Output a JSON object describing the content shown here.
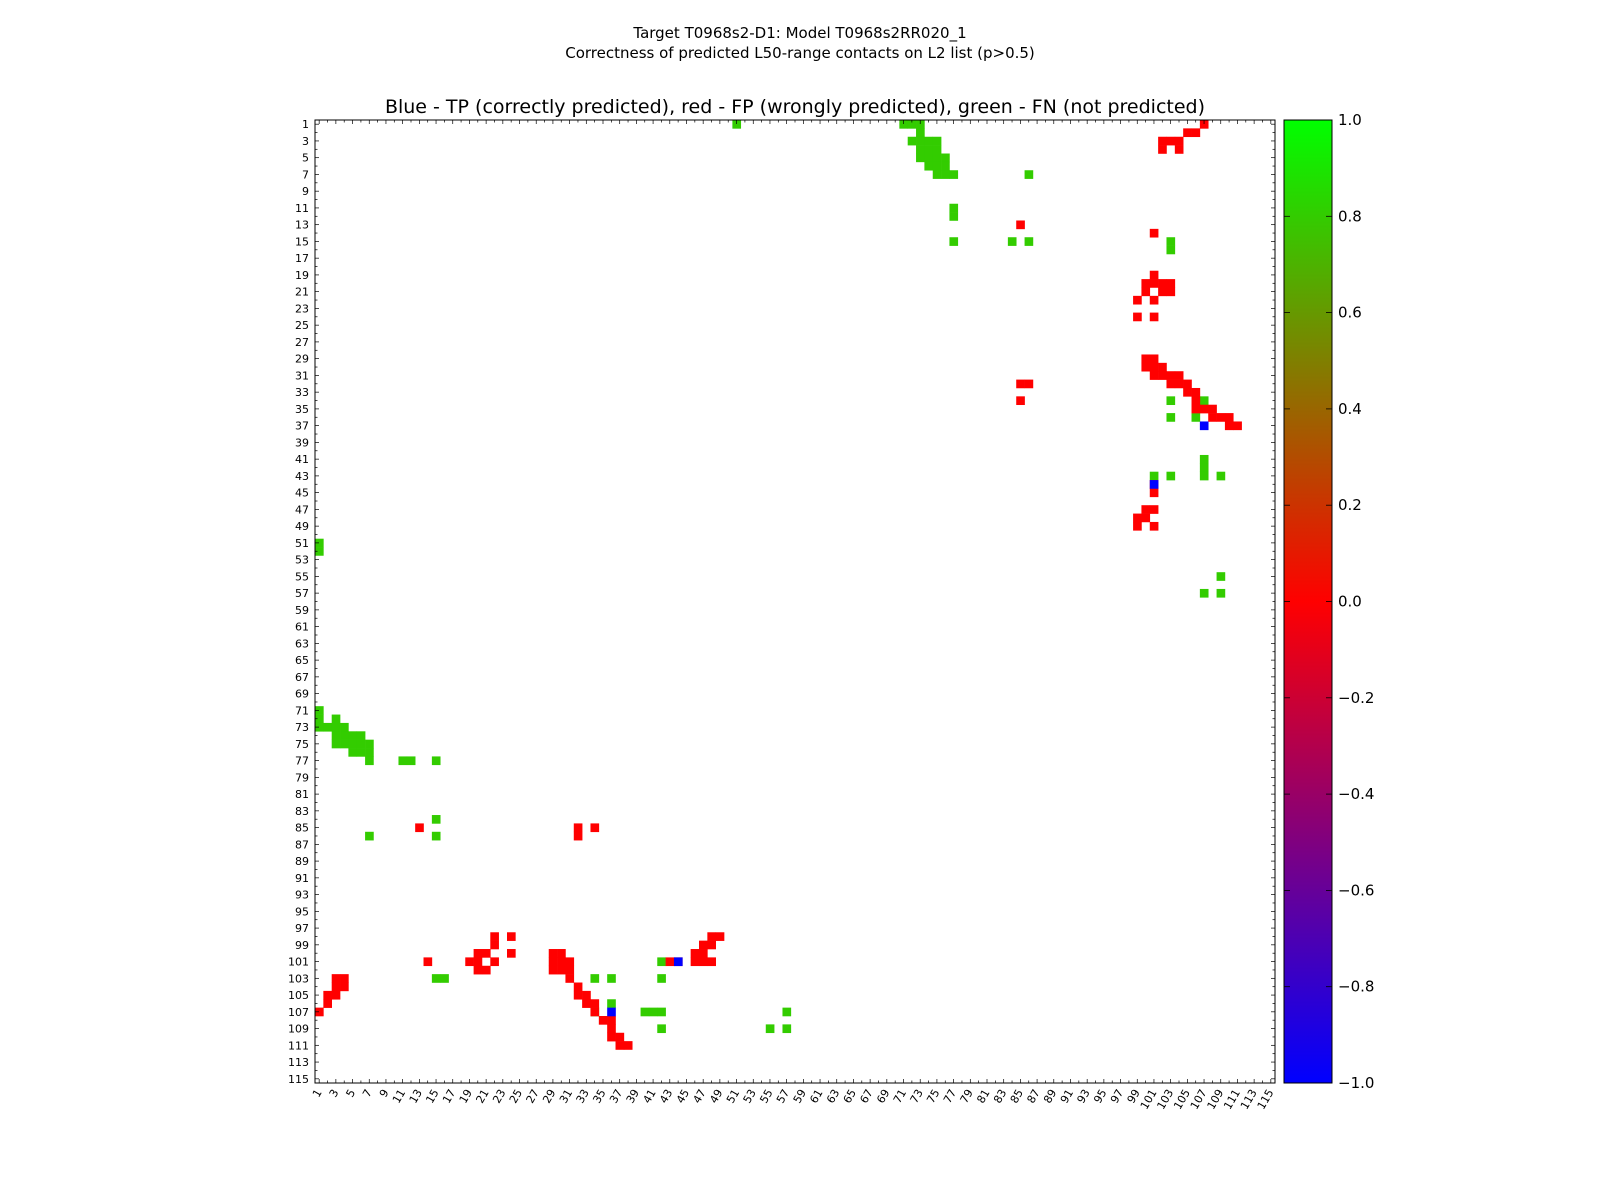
{
  "chart_data": {
    "type": "heatmap",
    "suptitle_line1": "Target T0968s2-D1: Model T0968s2RR020_1",
    "suptitle_line2": "Correctness of predicted L50-range contacts on L2 list (p>0.5)",
    "title": "Blue - TP (correctly predicted), red - FP (wrongly predicted), green - FN (not predicted)",
    "matrix_size": 115,
    "x_tick_labels": [
      "1",
      "3",
      "5",
      "7",
      "9",
      "11",
      "13",
      "15",
      "17",
      "19",
      "21",
      "23",
      "25",
      "27",
      "29",
      "31",
      "33",
      "35",
      "37",
      "39",
      "41",
      "43",
      "45",
      "47",
      "49",
      "51",
      "53",
      "55",
      "57",
      "59",
      "61",
      "63",
      "65",
      "67",
      "69",
      "71",
      "73",
      "75",
      "77",
      "79",
      "81",
      "83",
      "85",
      "87",
      "89",
      "91",
      "93",
      "95",
      "97",
      "99",
      "101",
      "103",
      "105",
      "107",
      "109",
      "111",
      "113",
      "115"
    ],
    "y_tick_labels": [
      "1",
      "3",
      "5",
      "7",
      "9",
      "11",
      "13",
      "15",
      "17",
      "19",
      "21",
      "23",
      "25",
      "27",
      "29",
      "31",
      "33",
      "35",
      "37",
      "39",
      "41",
      "43",
      "45",
      "47",
      "49",
      "51",
      "53",
      "55",
      "57",
      "59",
      "61",
      "63",
      "65",
      "67",
      "69",
      "71",
      "73",
      "75",
      "77",
      "79",
      "81",
      "83",
      "85",
      "87",
      "89",
      "91",
      "93",
      "95",
      "97",
      "99",
      "101",
      "103",
      "105",
      "107",
      "109",
      "111",
      "113",
      "115"
    ],
    "colorbar": {
      "range": [
        -1.0,
        1.0
      ],
      "colors": [
        "#0000ff",
        "#ff0000",
        "#00ff00"
      ],
      "tick_labels": [
        "1.0",
        "0.8",
        "0.6",
        "0.4",
        "0.2",
        "0.0",
        "−0.2",
        "−0.4",
        "−0.6",
        "−0.8",
        "−1.0"
      ]
    },
    "category_colors": {
      "TP": "#0000ff",
      "FP": "#ff0000",
      "FN": "#33cc00"
    },
    "cells": {
      "FN": [
        [
          1,
          51
        ],
        [
          1,
          71
        ],
        [
          1,
          72
        ],
        [
          1,
          73
        ],
        [
          2,
          73
        ],
        [
          3,
          72
        ],
        [
          3,
          73
        ],
        [
          3,
          74
        ],
        [
          3,
          75
        ],
        [
          4,
          73
        ],
        [
          4,
          74
        ],
        [
          4,
          75
        ],
        [
          5,
          73
        ],
        [
          5,
          74
        ],
        [
          5,
          75
        ],
        [
          5,
          76
        ],
        [
          6,
          74
        ],
        [
          6,
          75
        ],
        [
          6,
          76
        ],
        [
          7,
          75
        ],
        [
          7,
          76
        ],
        [
          7,
          77
        ],
        [
          7,
          86
        ],
        [
          11,
          77
        ],
        [
          12,
          77
        ],
        [
          15,
          77
        ],
        [
          15,
          84
        ],
        [
          15,
          86
        ],
        [
          15,
          103
        ],
        [
          16,
          103
        ],
        [
          34,
          103
        ],
        [
          34,
          107
        ],
        [
          36,
          103
        ],
        [
          36,
          106
        ],
        [
          41,
          107
        ],
        [
          42,
          107
        ],
        [
          43,
          101
        ],
        [
          43,
          103
        ],
        [
          43,
          107
        ],
        [
          43,
          109
        ],
        [
          55,
          109
        ],
        [
          57,
          107
        ],
        [
          57,
          109
        ],
        [
          51,
          1
        ],
        [
          52,
          1
        ],
        [
          71,
          1
        ],
        [
          72,
          1
        ],
        [
          73,
          1
        ],
        [
          73,
          2
        ],
        [
          73,
          3
        ],
        [
          72,
          3
        ],
        [
          74,
          3
        ],
        [
          74,
          4
        ],
        [
          75,
          3
        ],
        [
          73,
          4
        ],
        [
          74,
          5
        ],
        [
          75,
          5
        ],
        [
          76,
          5
        ],
        [
          75,
          4
        ],
        [
          76,
          6
        ],
        [
          74,
          6
        ],
        [
          75,
          6
        ],
        [
          75,
          7
        ],
        [
          76,
          7
        ],
        [
          77,
          7
        ],
        [
          77,
          11
        ],
        [
          77,
          12
        ],
        [
          77,
          15
        ],
        [
          84,
          15
        ],
        [
          86,
          15
        ],
        [
          86,
          7
        ],
        [
          101,
          42
        ],
        [
          103,
          15
        ],
        [
          103,
          16
        ],
        [
          103,
          34
        ],
        [
          103,
          36
        ],
        [
          103,
          42
        ],
        [
          106,
          36
        ],
        [
          107,
          34
        ],
        [
          107,
          40
        ],
        [
          107,
          41
        ],
        [
          107,
          42
        ],
        [
          107,
          57
        ],
        [
          109,
          42
        ],
        [
          109,
          55
        ],
        [
          109,
          57
        ]
      ],
      "FP": [
        [
          1,
          107
        ],
        [
          2,
          105
        ],
        [
          2,
          106
        ],
        [
          3,
          102
        ],
        [
          3,
          103
        ],
        [
          3,
          104
        ],
        [
          4,
          102
        ],
        [
          4,
          104
        ],
        [
          13,
          85
        ],
        [
          14,
          101
        ],
        [
          19,
          101
        ],
        [
          20,
          100
        ],
        [
          20,
          101
        ],
        [
          20,
          102
        ],
        [
          20,
          103
        ],
        [
          21,
          100
        ],
        [
          21,
          102
        ],
        [
          21,
          103
        ],
        [
          22,
          99
        ],
        [
          22,
          101
        ],
        [
          24,
          99
        ],
        [
          24,
          101
        ],
        [
          29,
          100
        ],
        [
          29,
          101
        ],
        [
          30,
          100
        ],
        [
          30,
          101
        ],
        [
          30,
          102
        ],
        [
          31,
          101
        ],
        [
          31,
          102
        ],
        [
          31,
          103
        ],
        [
          31,
          104
        ],
        [
          32,
          85
        ],
        [
          32,
          86
        ],
        [
          32,
          103
        ],
        [
          32,
          104
        ],
        [
          32,
          105
        ],
        [
          33,
          105
        ],
        [
          33,
          106
        ],
        [
          34,
          85
        ],
        [
          34,
          106
        ],
        [
          35,
          106
        ],
        [
          35,
          107
        ],
        [
          35,
          108
        ],
        [
          36,
          108
        ],
        [
          36,
          109
        ],
        [
          36,
          110
        ],
        [
          37,
          110
        ],
        [
          37,
          111
        ],
        [
          44,
          101
        ],
        [
          45,
          101
        ],
        [
          47,
          100
        ],
        [
          47,
          101
        ],
        [
          48,
          99
        ],
        [
          48,
          100
        ],
        [
          49,
          99
        ],
        [
          49,
          101
        ],
        [
          107,
          1
        ],
        [
          106,
          2
        ],
        [
          105,
          2
        ],
        [
          105,
          3
        ],
        [
          104,
          4
        ],
        [
          104,
          3
        ],
        [
          103,
          3
        ],
        [
          103,
          4
        ],
        [
          85,
          13
        ],
        [
          101,
          14
        ],
        [
          101,
          19
        ],
        [
          100,
          20
        ],
        [
          101,
          20
        ],
        [
          102,
          20
        ],
        [
          102,
          21
        ],
        [
          100,
          21
        ],
        [
          99,
          22
        ],
        [
          101,
          22
        ],
        [
          98,
          22
        ],
        [
          98,
          24
        ],
        [
          100,
          24
        ],
        [
          100,
          29
        ],
        [
          101,
          29
        ],
        [
          102,
          29
        ],
        [
          100,
          30
        ],
        [
          101,
          30
        ],
        [
          102,
          30
        ],
        [
          101,
          31
        ],
        [
          102,
          31
        ],
        [
          103,
          31
        ],
        [
          104,
          32
        ],
        [
          105,
          32
        ],
        [
          105,
          33
        ],
        [
          106,
          33
        ],
        [
          85,
          32
        ],
        [
          86,
          32
        ],
        [
          85,
          34
        ],
        [
          106,
          34
        ],
        [
          107,
          34
        ],
        [
          108,
          35
        ],
        [
          108,
          36
        ],
        [
          109,
          36
        ],
        [
          110,
          36
        ],
        [
          110,
          37
        ],
        [
          111,
          37
        ],
        [
          111,
          38
        ],
        [
          101,
          43
        ],
        [
          101,
          44
        ],
        [
          101,
          46
        ],
        [
          100,
          46
        ],
        [
          100,
          47
        ],
        [
          99,
          47
        ],
        [
          101,
          47
        ],
        [
          99,
          48
        ],
        [
          98,
          48
        ],
        [
          101,
          48
        ],
        [
          98,
          49
        ]
      ],
      "TP": [
        [
          37,
          107
        ],
        [
          44,
          101
        ],
        [
          101,
          44
        ],
        [
          107,
          36
        ]
      ]
    }
  }
}
